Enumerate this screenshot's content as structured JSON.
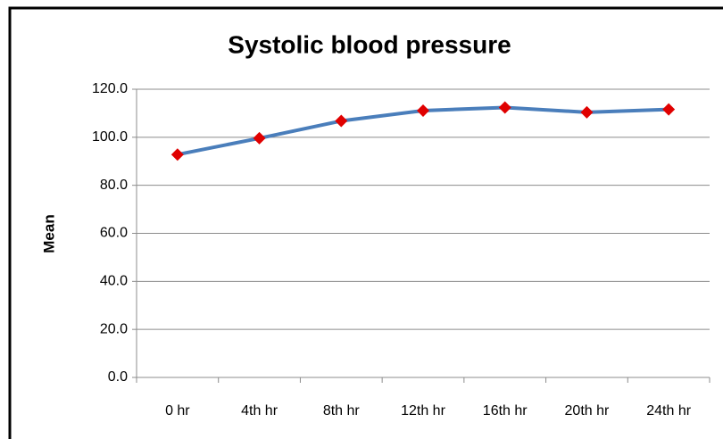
{
  "chart_data": {
    "type": "line",
    "title": "Systolic blood pressure",
    "y_label": "Mean",
    "categories": [
      "0 hr",
      "4th hr",
      "8th hr",
      "12th hr",
      "16th hr",
      "20th hr",
      "24th hr"
    ],
    "series": [
      {
        "name": "Mean",
        "color": "#4a7ebb",
        "marker_color": "#e00000",
        "values": [
          92.8,
          99.6,
          106.8,
          111.1,
          112.4,
          110.4,
          111.6
        ]
      }
    ],
    "ylim": [
      0,
      120
    ],
    "yticks": [
      {
        "value": 0,
        "label": "0.0"
      },
      {
        "value": 20,
        "label": "20.0"
      },
      {
        "value": 40,
        "label": "40.0"
      },
      {
        "value": 60,
        "label": "60.0"
      },
      {
        "value": 80,
        "label": "80.0"
      },
      {
        "value": 100,
        "label": "100.0"
      },
      {
        "value": 120,
        "label": "120.0"
      }
    ],
    "grid": true
  }
}
